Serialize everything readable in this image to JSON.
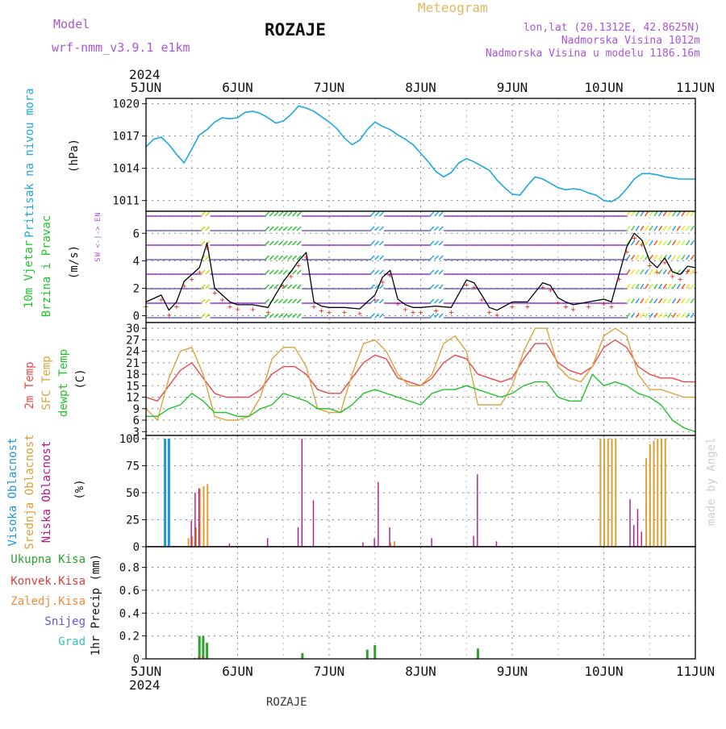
{
  "header": {
    "model_label": "Model",
    "model_name": "wrf-nmm_v3.9.1 e1km",
    "station": "ROZAJE",
    "meteogram": "Meteogram",
    "lonlat": "lon,lat (20.1312E, 42.8625N)",
    "altitude": "Nadmorska Visina 1012m",
    "model_altitude": "Nadmorska Visina u modelu 1186.16m",
    "year_top": "2024",
    "year_bottom": "2024",
    "footer_station": "ROZAJE",
    "watermark": "made by Angel"
  },
  "x_axis": {
    "days": [
      "5JUN",
      "6JUN",
      "7JUN",
      "8JUN",
      "9JUN",
      "10JUN",
      "11JUN"
    ],
    "range_hours": [
      0,
      144
    ]
  },
  "colors": {
    "pressure": "#1ea7e1",
    "temp2m": "#e8484c",
    "sfc_temp": "#d9a441",
    "dewpt": "#22c32a",
    "wind_speed": "#000000",
    "wind_gust_marker": "#e03020",
    "high_cloud": "#1e96dc",
    "mid_cloud": "#dca032",
    "low_cloud": "#b4148c",
    "total_precip": "#2da02d",
    "conv_precip": "#dc3c3c",
    "frozen_precip": "#f08c3c",
    "snow": "#5a5adc",
    "graupel": "#32c8b4",
    "header_purple": "#a855d8",
    "header_gold": "#e0b860"
  },
  "chart_data": [
    {
      "type": "line",
      "panel": "pressure",
      "ylabel_parts": [
        "Pritisak na nivou mora",
        "(hPa)"
      ],
      "ylim": [
        1010,
        1020.5
      ],
      "yticks": [
        1011,
        1014,
        1017,
        1020
      ],
      "grid": true,
      "series": [
        {
          "key": "pressure",
          "x": [
            0,
            2,
            4,
            6,
            8,
            10,
            12,
            14,
            16,
            18,
            20,
            22,
            24,
            26,
            28,
            30,
            32,
            34,
            36,
            38,
            40,
            42,
            44,
            46,
            48,
            50,
            52,
            54,
            56,
            58,
            60,
            62,
            64,
            66,
            68,
            70,
            72,
            74,
            76,
            78,
            80,
            82,
            84,
            86,
            88,
            90,
            92,
            94,
            96,
            98,
            100,
            102,
            104,
            106,
            108,
            110,
            112,
            114,
            116,
            118,
            120,
            122,
            124,
            126,
            128,
            130,
            132,
            134,
            136,
            138,
            140,
            142,
            144
          ],
          "values": [
            1016,
            1016.7,
            1016.9,
            1016.2,
            1015.3,
            1014.5,
            1015.8,
            1017.1,
            1017.6,
            1018.3,
            1018.7,
            1018.6,
            1018.7,
            1019.2,
            1019.3,
            1019.1,
            1018.7,
            1018.2,
            1018.4,
            1019,
            1019.8,
            1019.6,
            1019.3,
            1018.8,
            1018.3,
            1017.7,
            1016.8,
            1016.2,
            1016.6,
            1017.6,
            1018.3,
            1017.9,
            1017.6,
            1017.1,
            1016.7,
            1016.2,
            1015.4,
            1014.6,
            1013.7,
            1013.2,
            1013.6,
            1014.5,
            1014.9,
            1014.6,
            1014.2,
            1013.8,
            1012.9,
            1012.2,
            1011.6,
            1011.5,
            1012.4,
            1013.2,
            1013.0,
            1012.6,
            1012.2,
            1012.0,
            1012.1,
            1012.0,
            1011.7,
            1011.5,
            1011.0,
            1010.9,
            1011.3,
            1012.1,
            1013.0,
            1013.5,
            1013.5,
            1013.4,
            1013.2,
            1013.1,
            1013.0,
            1013.0,
            1013.0
          ]
        }
      ]
    },
    {
      "type": "line",
      "panel": "wind",
      "ylabel_parts": [
        "10m Vjetar",
        "Brzina i Pravac",
        "(m/s)"
      ],
      "direction_legend": [
        "N",
        "W <-|-> E",
        "S"
      ],
      "ylim": [
        -0.5,
        7.6
      ],
      "yticks": [
        0,
        2,
        4,
        6
      ],
      "grid": true,
      "series": [
        {
          "key": "wind_speed",
          "x": [
            0,
            4,
            6,
            8,
            10,
            12,
            14,
            16,
            18,
            20,
            22,
            24,
            28,
            32,
            36,
            38,
            40,
            42,
            44,
            46,
            48,
            52,
            56,
            60,
            62,
            64,
            66,
            68,
            70,
            72,
            76,
            80,
            84,
            86,
            88,
            90,
            92,
            96,
            100,
            104,
            106,
            108,
            110,
            112,
            116,
            120,
            122,
            124,
            126,
            128,
            130,
            132,
            134,
            136,
            138,
            140,
            142,
            144
          ],
          "values": [
            1.0,
            1.5,
            0.4,
            1.0,
            2.5,
            3.0,
            3.5,
            5.3,
            2.0,
            1.5,
            1.0,
            0.8,
            0.8,
            0.6,
            2.5,
            3.2,
            4.0,
            4.6,
            1.0,
            0.7,
            0.6,
            0.6,
            0.5,
            1.5,
            2.8,
            3.3,
            1.2,
            0.8,
            0.6,
            0.6,
            0.7,
            0.6,
            2.6,
            2.4,
            1.5,
            0.6,
            0.4,
            1.0,
            1.0,
            2.4,
            2.2,
            1.3,
            1.0,
            0.8,
            1.0,
            1.2,
            1.0,
            3.0,
            5.0,
            6.0,
            5.5,
            4.0,
            3.5,
            4.2,
            3.2,
            3.0,
            3.6,
            3.5
          ]
        }
      ]
    },
    {
      "type": "line",
      "panel": "temperature",
      "ylabel_parts": [
        "2m Temp",
        "SFC Temp",
        "dewpt Temp",
        "(C)"
      ],
      "ylim": [
        2,
        31.5
      ],
      "yticks": [
        3,
        6,
        9,
        12,
        15,
        18,
        21,
        24,
        27,
        30
      ],
      "grid": true,
      "x": [
        0,
        3,
        6,
        9,
        12,
        15,
        18,
        21,
        24,
        27,
        30,
        33,
        36,
        39,
        42,
        45,
        48,
        51,
        54,
        57,
        60,
        63,
        66,
        69,
        72,
        75,
        78,
        81,
        84,
        87,
        90,
        93,
        96,
        99,
        102,
        105,
        108,
        111,
        114,
        117,
        120,
        123,
        126,
        129,
        132,
        135,
        138,
        141,
        144
      ],
      "series": [
        {
          "key": "temp2m",
          "values": [
            12,
            11,
            15,
            19,
            21,
            17,
            13,
            12,
            12,
            12,
            14,
            18,
            20,
            20,
            18,
            14,
            13,
            13,
            17,
            21,
            23,
            22,
            17,
            16,
            15,
            17,
            21,
            23,
            22,
            18,
            17,
            16,
            17,
            22,
            26,
            26,
            21,
            19,
            18,
            20,
            25,
            27,
            25,
            20,
            18,
            17,
            17,
            16,
            16
          ]
        },
        {
          "key": "sfc_temp",
          "values": [
            9,
            6,
            17,
            24,
            25,
            18,
            7,
            6,
            6,
            7,
            12,
            22,
            25,
            25,
            20,
            9,
            8,
            8,
            18,
            26,
            27,
            24,
            18,
            15,
            15,
            18,
            26,
            28,
            24,
            10,
            10,
            10,
            15,
            24,
            30,
            30,
            20,
            17,
            16,
            20,
            28,
            30,
            28,
            18,
            14,
            14,
            13,
            12,
            12
          ]
        },
        {
          "key": "dewpt",
          "values": [
            7,
            7,
            9,
            10,
            13,
            11,
            8,
            8,
            7,
            7,
            9,
            10,
            13,
            12,
            11,
            9,
            9,
            8,
            10,
            13,
            14,
            13,
            12,
            11,
            10,
            13,
            14,
            14,
            15,
            14,
            13,
            12,
            13,
            15,
            16,
            16,
            12,
            11,
            11,
            18,
            15,
            16,
            15,
            13,
            12,
            10,
            6,
            4,
            3
          ]
        }
      ]
    },
    {
      "type": "bar",
      "panel": "clouds",
      "ylabel_parts": [
        "Visoka Oblacnost",
        "Srednja Oblacnost",
        "Niska Oblacnost",
        "(%)"
      ],
      "ylim": [
        0,
        103
      ],
      "yticks": [
        0,
        25,
        50,
        75,
        100
      ],
      "grid": true,
      "series": [
        {
          "key": "high_cloud",
          "x": [
            5,
            6
          ],
          "values": [
            100,
            100
          ]
        },
        {
          "key": "mid_cloud",
          "x": [
            11,
            12,
            13,
            14,
            15,
            16,
            64,
            65,
            119,
            120,
            121,
            122,
            123,
            131,
            132,
            133,
            134,
            135,
            136
          ],
          "values": [
            8,
            10,
            18,
            54,
            56,
            58,
            4,
            5,
            100,
            100,
            100,
            100,
            100,
            82,
            95,
            98,
            100,
            100,
            100
          ]
        },
        {
          "key": "low_cloud",
          "x": [
            12,
            13,
            14,
            22,
            32,
            40,
            41,
            44,
            57,
            60,
            61,
            64,
            75,
            86,
            87,
            92,
            127,
            128,
            129,
            130
          ],
          "values": [
            24,
            50,
            54,
            3,
            8,
            18,
            100,
            43,
            4,
            8,
            60,
            18,
            8,
            10,
            67,
            5,
            44,
            20,
            35,
            14
          ]
        }
      ]
    },
    {
      "type": "bar",
      "panel": "precipitation",
      "ylabel_parts": [
        "Ukupna Kisa",
        "Konvek.Kisa",
        "Zaledj.Kisa",
        "Snijeg",
        "Grad",
        "1hr Precip (mm)"
      ],
      "ylim": [
        0,
        0.98
      ],
      "yticks": [
        0,
        0.2,
        0.4,
        0.6,
        0.8
      ],
      "grid": true,
      "series": [
        {
          "key": "total_precip",
          "x": [
            14,
            15,
            16,
            41,
            58,
            60,
            87
          ],
          "values": [
            0.2,
            0.2,
            0.14,
            0.05,
            0.08,
            0.12,
            0.09
          ]
        },
        {
          "key": "conv_precip",
          "x": [
            13,
            14,
            15
          ],
          "values": [
            0.01,
            0.02,
            0.02
          ]
        }
      ]
    }
  ]
}
